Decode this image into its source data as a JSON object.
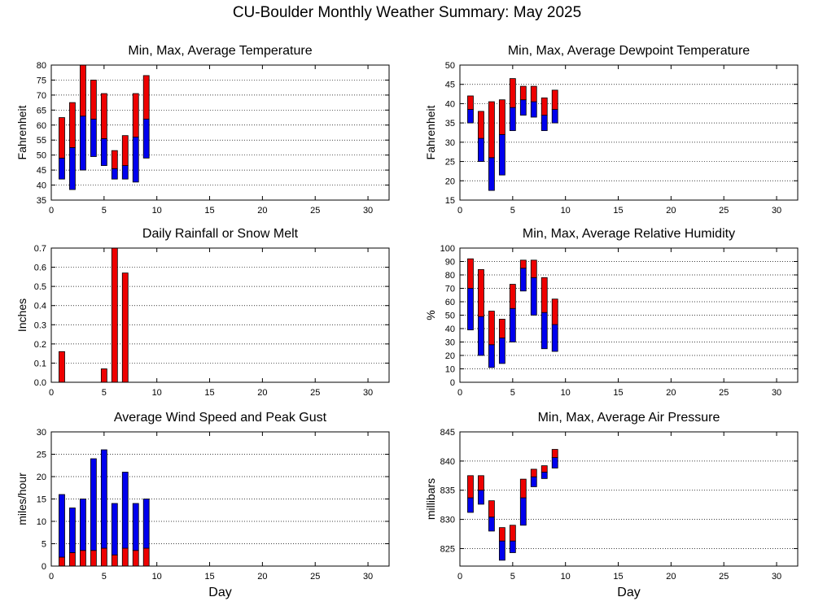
{
  "title": "CU-Boulder Monthly Weather Summary: May 2025",
  "colors": {
    "max_segment": "#ee0000",
    "min_segment": "#0000ee",
    "outline": "#000000"
  },
  "chart_data": [
    {
      "type": "bar",
      "title": "Min, Max, Average Temperature",
      "xlabel": "",
      "ylabel": "Fahrenheit",
      "xlim": [
        0,
        32
      ],
      "ylim": [
        35,
        80
      ],
      "xticks": [
        0,
        5,
        10,
        15,
        20,
        25,
        30
      ],
      "yticks": [
        35,
        40,
        45,
        50,
        55,
        60,
        65,
        70,
        75,
        80
      ],
      "grid": "horizontal dotted",
      "x": [
        1,
        2,
        3,
        4,
        5,
        6,
        7,
        8,
        9
      ],
      "min": [
        42,
        38.5,
        45,
        49.5,
        46.5,
        42,
        42,
        41,
        49
      ],
      "avg": [
        49,
        52.5,
        63,
        62,
        55.5,
        45.5,
        46.5,
        56,
        62
      ],
      "max": [
        62.5,
        67.5,
        80,
        75,
        70.5,
        51.5,
        56.5,
        70.5,
        76.5
      ]
    },
    {
      "type": "bar",
      "title": "Min, Max, Average Dewpoint Temperature",
      "xlabel": "",
      "ylabel": "Fahrenheit",
      "xlim": [
        0,
        32
      ],
      "ylim": [
        15,
        50
      ],
      "xticks": [
        0,
        5,
        10,
        15,
        20,
        25,
        30
      ],
      "yticks": [
        15,
        20,
        25,
        30,
        35,
        40,
        45,
        50
      ],
      "grid": "horizontal dotted",
      "x": [
        1,
        2,
        3,
        4,
        5,
        6,
        7,
        8,
        9
      ],
      "min": [
        35,
        25,
        17.5,
        21.5,
        33,
        37,
        36.5,
        33,
        35
      ],
      "avg": [
        38.5,
        31,
        26,
        32,
        39,
        41,
        40.5,
        37,
        38.5
      ],
      "max": [
        42,
        38,
        40.5,
        41,
        46.5,
        44.5,
        44.5,
        41.5,
        43.5
      ]
    },
    {
      "type": "bar",
      "title": "Daily Rainfall or Snow Melt",
      "xlabel": "",
      "ylabel": "Inches",
      "xlim": [
        0,
        32
      ],
      "ylim": [
        0,
        0.7
      ],
      "xticks": [
        0,
        5,
        10,
        15,
        20,
        25,
        30
      ],
      "yticks": [
        0.0,
        0.1,
        0.2,
        0.3,
        0.4,
        0.5,
        0.6,
        0.7
      ],
      "ytick_labels": [
        "0.0",
        "0.1",
        "0.2",
        "0.3",
        "0.4",
        "0.5",
        "0.6",
        "0.7"
      ],
      "grid": "horizontal dotted",
      "x": [
        1,
        2,
        3,
        4,
        5,
        6,
        7,
        8,
        9
      ],
      "values": [
        0.16,
        0,
        0,
        0,
        0.07,
        0.7,
        0.57,
        0,
        0
      ]
    },
    {
      "type": "bar",
      "title": "Min, Max, Average Relative Humidity",
      "xlabel": "",
      "ylabel": "%",
      "xlim": [
        0,
        32
      ],
      "ylim": [
        0,
        100
      ],
      "xticks": [
        0,
        5,
        10,
        15,
        20,
        25,
        30
      ],
      "yticks": [
        0,
        10,
        20,
        30,
        40,
        50,
        60,
        70,
        80,
        90,
        100
      ],
      "grid": "horizontal dotted",
      "x": [
        1,
        2,
        3,
        4,
        5,
        6,
        7,
        8,
        9
      ],
      "min": [
        39,
        20,
        11,
        14,
        30,
        68,
        50,
        25,
        23
      ],
      "avg": [
        70,
        49,
        28,
        33,
        55,
        85,
        78,
        52,
        43
      ],
      "max": [
        92,
        84,
        53,
        47,
        73,
        91,
        91,
        78,
        62
      ]
    },
    {
      "type": "bar",
      "title": "Average Wind Speed and Peak Gust",
      "xlabel": "Day",
      "ylabel": "miles/hour",
      "xlim": [
        0,
        32
      ],
      "ylim": [
        0,
        30
      ],
      "xticks": [
        0,
        5,
        10,
        15,
        20,
        25,
        30
      ],
      "yticks": [
        0,
        5,
        10,
        15,
        20,
        25,
        30
      ],
      "grid": "horizontal dotted",
      "x": [
        1,
        2,
        3,
        4,
        5,
        6,
        7,
        8,
        9
      ],
      "average_wind": [
        2,
        3,
        3.5,
        3.5,
        4,
        2.5,
        4,
        3.5,
        4
      ],
      "peak_gust": [
        16,
        13,
        15,
        24,
        26,
        14,
        21,
        14,
        15
      ]
    },
    {
      "type": "bar",
      "title": "Min, Max, Average Air Pressure",
      "xlabel": "Day",
      "ylabel": "millibars",
      "xlim": [
        0,
        32
      ],
      "ylim": [
        822,
        845
      ],
      "xticks": [
        0,
        5,
        10,
        15,
        20,
        25,
        30
      ],
      "yticks": [
        825,
        830,
        835,
        840,
        845
      ],
      "grid": "horizontal dotted",
      "x": [
        1,
        2,
        3,
        4,
        5,
        6,
        7,
        8,
        9
      ],
      "min": [
        831.2,
        832.6,
        828.0,
        823.0,
        824.3,
        829.0,
        835.6,
        837.0,
        838.8
      ],
      "avg": [
        833.7,
        835.0,
        830.4,
        826.3,
        826.3,
        833.7,
        837.3,
        838.1,
        840.6
      ],
      "max": [
        837.5,
        837.5,
        833.2,
        828.6,
        829.0,
        836.9,
        838.6,
        839.2,
        842.0
      ]
    }
  ]
}
